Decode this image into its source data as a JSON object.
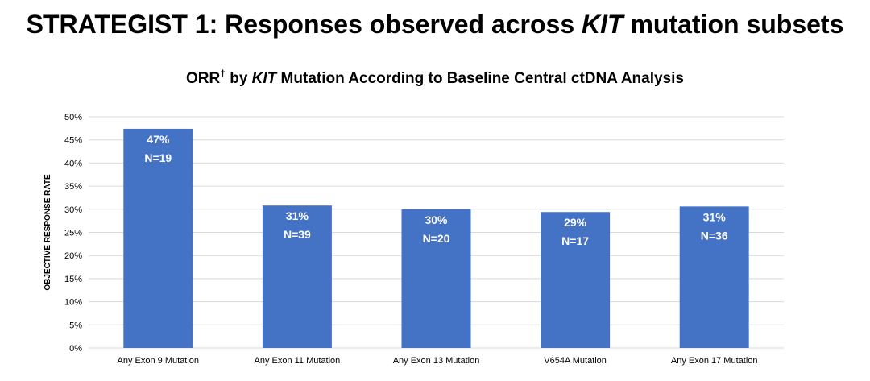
{
  "slide": {
    "title_prefix": "STRATEGIST 1: Responses observed across ",
    "title_gene": "KIT",
    "title_suffix": " mutation subsets"
  },
  "chart_data": {
    "type": "bar",
    "title_prefix": "ORR",
    "title_dagger": "†",
    "title_mid": " by ",
    "title_gene": "KIT",
    "title_suffix": " Mutation According to Baseline Central ctDNA Analysis",
    "xlabel": "",
    "ylabel": "OBJECTIVE RESPONSE RATE",
    "ylim": [
      0,
      50
    ],
    "yticks": [
      0,
      5,
      10,
      15,
      20,
      25,
      30,
      35,
      40,
      45,
      50
    ],
    "ytick_labels": [
      "0%",
      "5%",
      "10%",
      "15%",
      "20%",
      "25%",
      "30%",
      "35%",
      "40%",
      "45%",
      "50%"
    ],
    "grid": true,
    "bar_color": "#4472C4",
    "label_color": "#FFFFFF",
    "grid_color": "#D9D9D9",
    "categories": [
      "Any Exon 9 Mutation",
      "Any Exon 11 Mutation",
      "Any Exon 13 Mutation",
      "V654A Mutation",
      "Any Exon 17 Mutation"
    ],
    "values": [
      47.4,
      30.8,
      30.0,
      29.4,
      30.6
    ],
    "data_labels": [
      "47%",
      "31%",
      "30%",
      "29%",
      "31%"
    ],
    "n_labels": [
      "N=19",
      "N=39",
      "N=20",
      "N=17",
      "N=36"
    ]
  }
}
